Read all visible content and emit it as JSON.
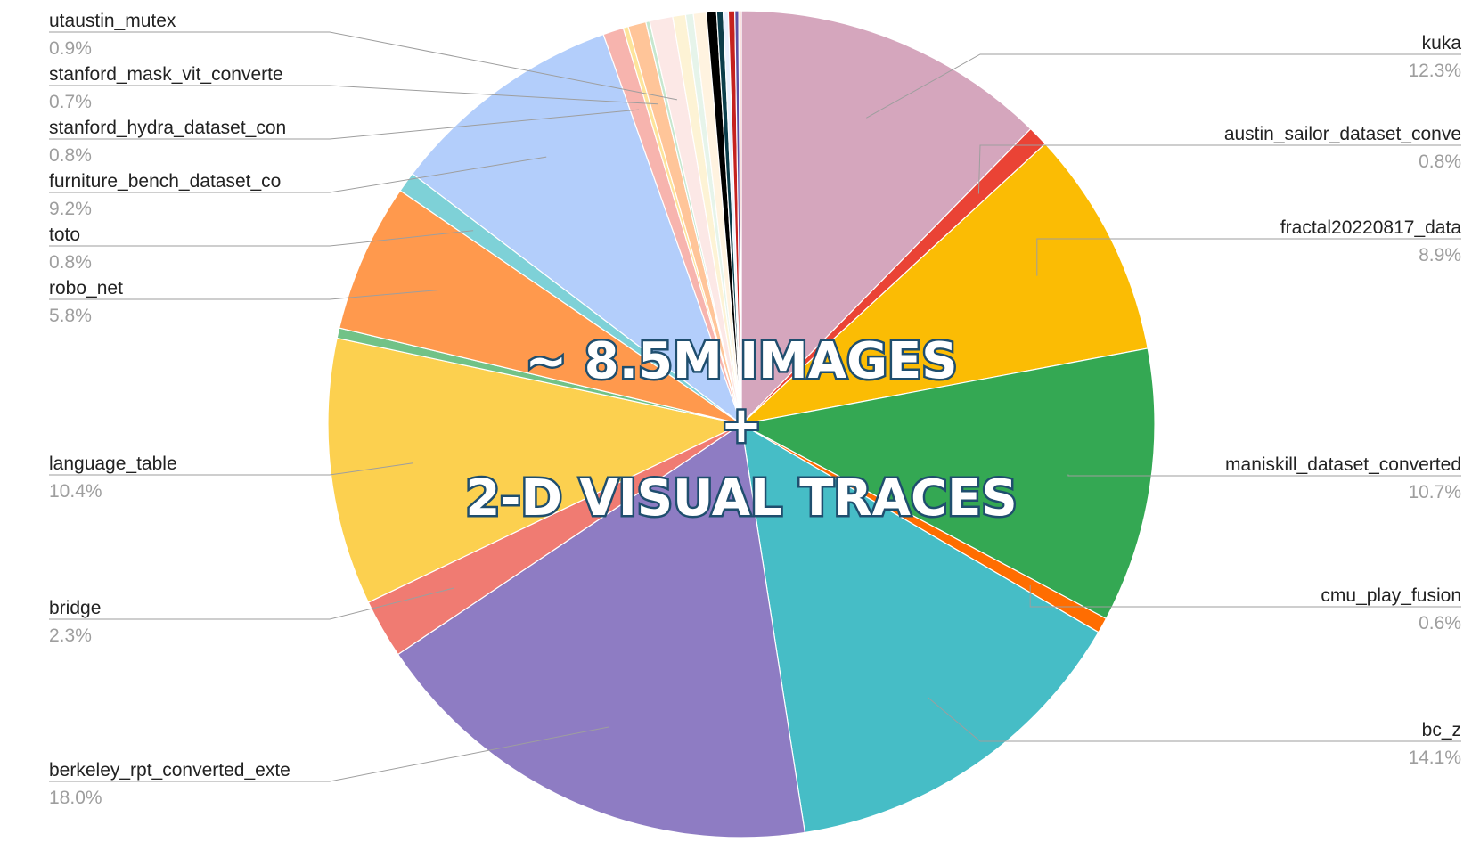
{
  "chart_data": {
    "type": "pie",
    "title": "",
    "center_text": {
      "line1": "~ 8.5M IMAGES",
      "line2": "+",
      "line3": "2-D VISUAL TRACES"
    },
    "slices": [
      {
        "name": "kuka",
        "value": 12.3,
        "label": "12.3%",
        "color": "#d5a6bd",
        "labeled": true
      },
      {
        "name": "austin_sailor_dataset_conve",
        "value": 0.8,
        "label": "0.8%",
        "color": "#ea4335",
        "labeled": true
      },
      {
        "name": "fractal20220817_data",
        "value": 8.9,
        "label": "8.9%",
        "color": "#fbbc04",
        "labeled": true
      },
      {
        "name": "maniskill_dataset_converted",
        "value": 10.7,
        "label": "10.7%",
        "color": "#34a853",
        "labeled": true
      },
      {
        "name": "cmu_play_fusion",
        "value": 0.6,
        "label": "0.6%",
        "color": "#ff6d01",
        "labeled": true
      },
      {
        "name": "bc_z",
        "value": 14.1,
        "label": "14.1%",
        "color": "#46bdc6",
        "labeled": true
      },
      {
        "name": "berkeley_rpt_converted_exte",
        "value": 18.0,
        "label": "18.0%",
        "color": "#8e7cc3",
        "labeled": true
      },
      {
        "name": "bridge",
        "value": 2.3,
        "label": "2.3%",
        "color": "#f07b72",
        "labeled": true
      },
      {
        "name": "language_table",
        "value": 10.4,
        "label": "10.4%",
        "color": "#fcd04f",
        "labeled": true
      },
      {
        "value": 0.4,
        "color": "#71c287",
        "labeled": false
      },
      {
        "name": "robo_net",
        "value": 5.8,
        "label": "5.8%",
        "color": "#ff994d",
        "labeled": true
      },
      {
        "name": "toto",
        "value": 0.8,
        "label": "0.8%",
        "color": "#7ed1d7",
        "labeled": true
      },
      {
        "name": "furniture_bench_dataset_co",
        "value": 9.2,
        "label": "9.2%",
        "color": "#b3cefb",
        "labeled": true
      },
      {
        "name": "stanford_hydra_dataset_con",
        "value": 0.8,
        "label": "0.8%",
        "color": "#f7b4ae",
        "labeled": true
      },
      {
        "value": 0.2,
        "color": "#fde49b",
        "labeled": false
      },
      {
        "name": "stanford_mask_vit_converte",
        "value": 0.7,
        "label": "0.7%",
        "color": "#ffc599",
        "labeled": true
      },
      {
        "value": 0.15,
        "color": "#c6e7cf",
        "labeled": false
      },
      {
        "name": "utaustin_mutex",
        "value": 0.9,
        "label": "0.9%",
        "color": "#fce8e6",
        "labeled": true
      },
      {
        "value": 0.5,
        "color": "#fdf3d5",
        "labeled": false
      },
      {
        "value": 0.3,
        "color": "#e6f4ea",
        "labeled": false
      },
      {
        "value": 0.5,
        "color": "#fff3e0",
        "labeled": false
      },
      {
        "value": 0.4,
        "color": "#000000",
        "labeled": false
      },
      {
        "value": 0.25,
        "color": "#0b3d4a",
        "labeled": false
      },
      {
        "value": 0.2,
        "color": "#e8f0fe",
        "labeled": false
      },
      {
        "value": 0.25,
        "color": "#c5221f",
        "labeled": false
      },
      {
        "value": 0.15,
        "color": "#5f4fa2",
        "labeled": false
      },
      {
        "value": 0.1,
        "color": "#f4b6b0",
        "labeled": false
      }
    ],
    "legend": "none",
    "label_placement": "outside-with-leader-lines"
  }
}
